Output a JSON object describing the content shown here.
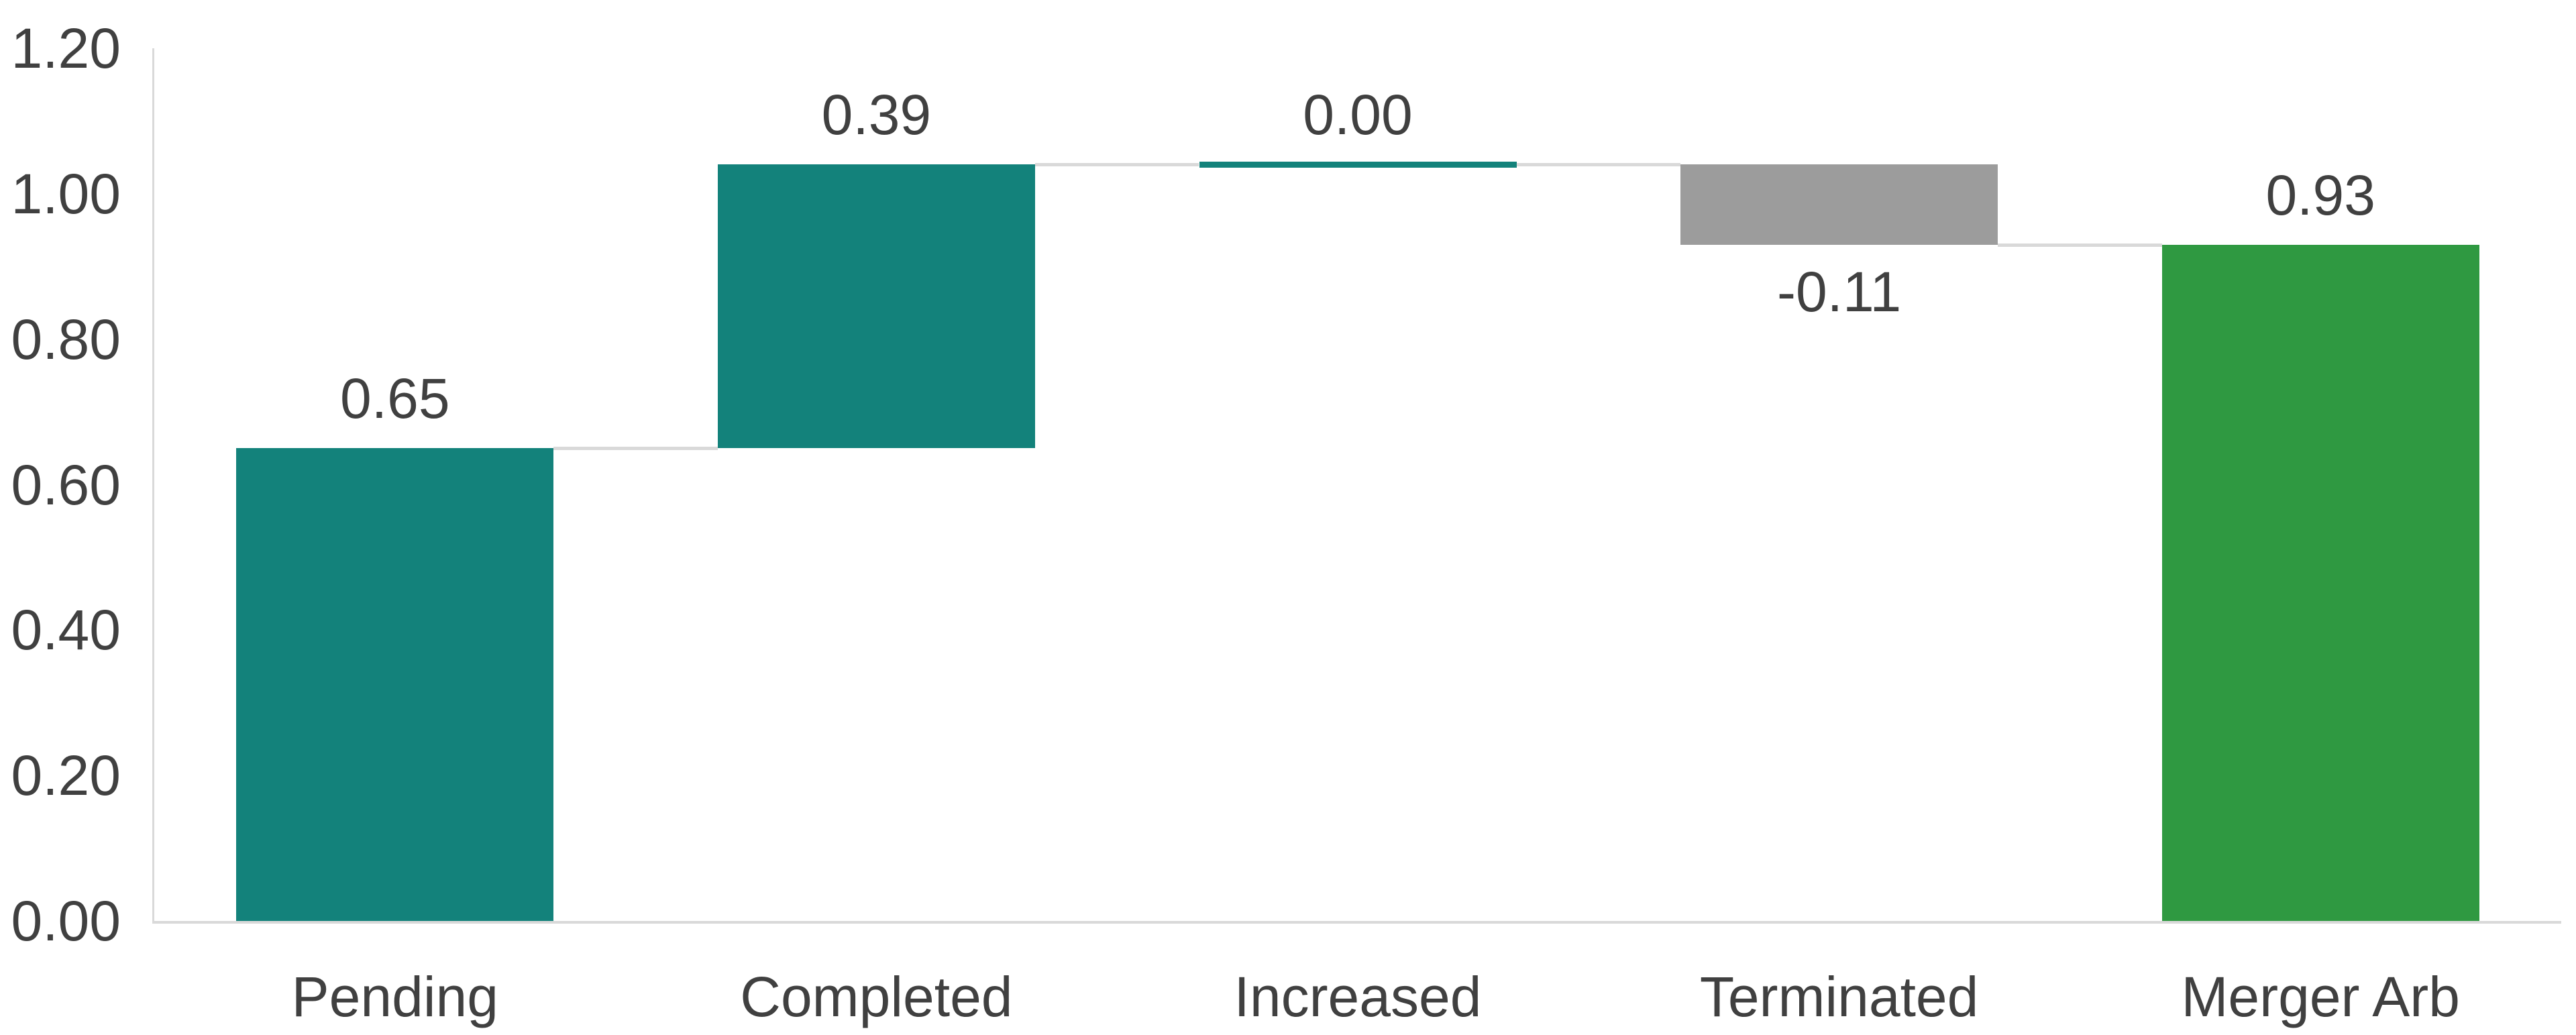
{
  "chart_data": {
    "type": "bar",
    "variant": "waterfall",
    "title": "",
    "xlabel": "",
    "ylabel": "",
    "categories": [
      "Pending",
      "Completed",
      "Increased",
      "Terminated",
      "Merger Arb"
    ],
    "values": [
      0.65,
      0.39,
      0.0,
      -0.11,
      0.93
    ],
    "series_roles": [
      "increase",
      "increase",
      "zero",
      "decrease",
      "total"
    ],
    "cumulative": [
      0.65,
      1.04,
      1.04,
      0.93,
      0.93
    ],
    "data_labels": [
      "0.65",
      "0.39",
      "0.00",
      "-0.11",
      "0.93"
    ],
    "data_label_positions": [
      "above",
      "above",
      "above",
      "below",
      "above"
    ],
    "ylim": [
      0,
      1.2
    ],
    "ytick_step": 0.2,
    "ytick_labels": [
      "0.00",
      "0.20",
      "0.40",
      "0.60",
      "0.80",
      "1.00",
      "1.20"
    ],
    "grid": "off",
    "legend": "none",
    "connector_lines": "on",
    "colors": {
      "increase": "#13827B",
      "decrease": "#9C9C9C",
      "total": "#2F9941",
      "zero_marker": "#13827B",
      "connector": "#D9D9D9",
      "axis_line": "#D9D9D9",
      "text": "#404040",
      "background": "#FFFFFF"
    }
  }
}
